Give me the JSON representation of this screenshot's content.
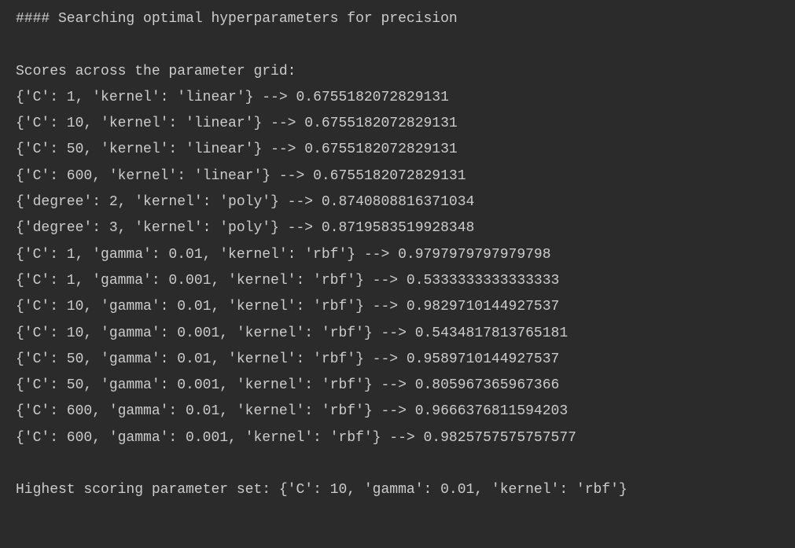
{
  "header": "#### Searching optimal hyperparameters for precision",
  "subheader": "Scores across the parameter grid:",
  "rows": [
    {
      "params": "{'C': 1, 'kernel': 'linear'}",
      "arrow": " --> ",
      "score": "0.6755182072829131"
    },
    {
      "params": "{'C': 10, 'kernel': 'linear'}",
      "arrow": " --> ",
      "score": "0.6755182072829131"
    },
    {
      "params": "{'C': 50, 'kernel': 'linear'}",
      "arrow": " --> ",
      "score": "0.6755182072829131"
    },
    {
      "params": "{'C': 600, 'kernel': 'linear'}",
      "arrow": " --> ",
      "score": "0.6755182072829131"
    },
    {
      "params": "{'degree': 2, 'kernel': 'poly'}",
      "arrow": " --> ",
      "score": "0.8740808816371034"
    },
    {
      "params": "{'degree': 3, 'kernel': 'poly'}",
      "arrow": " --> ",
      "score": "0.8719583519928348"
    },
    {
      "params": "{'C': 1, 'gamma': 0.01, 'kernel': 'rbf'}",
      "arrow": " --> ",
      "score": "0.9797979797979798"
    },
    {
      "params": "{'C': 1, 'gamma': 0.001, 'kernel': 'rbf'}",
      "arrow": " --> ",
      "score": "0.5333333333333333"
    },
    {
      "params": "{'C': 10, 'gamma': 0.01, 'kernel': 'rbf'}",
      "arrow": " --> ",
      "score": "0.9829710144927537"
    },
    {
      "params": "{'C': 10, 'gamma': 0.001, 'kernel': 'rbf'}",
      "arrow": " --> ",
      "score": "0.5434817813765181"
    },
    {
      "params": "{'C': 50, 'gamma': 0.01, 'kernel': 'rbf'}",
      "arrow": " --> ",
      "score": "0.9589710144927537"
    },
    {
      "params": "{'C': 50, 'gamma': 0.001, 'kernel': 'rbf'}",
      "arrow": " --> ",
      "score": "0.805967365967366"
    },
    {
      "params": "{'C': 600, 'gamma': 0.01, 'kernel': 'rbf'}",
      "arrow": " --> ",
      "score": "0.9666376811594203"
    },
    {
      "params": "{'C': 600, 'gamma': 0.001, 'kernel': 'rbf'}",
      "arrow": " --> ",
      "score": "0.9825757575757577"
    }
  ],
  "footer_prefix": "Highest scoring parameter set: ",
  "footer_params": "{'C': 10, 'gamma': 0.01, 'kernel': 'rbf'}"
}
